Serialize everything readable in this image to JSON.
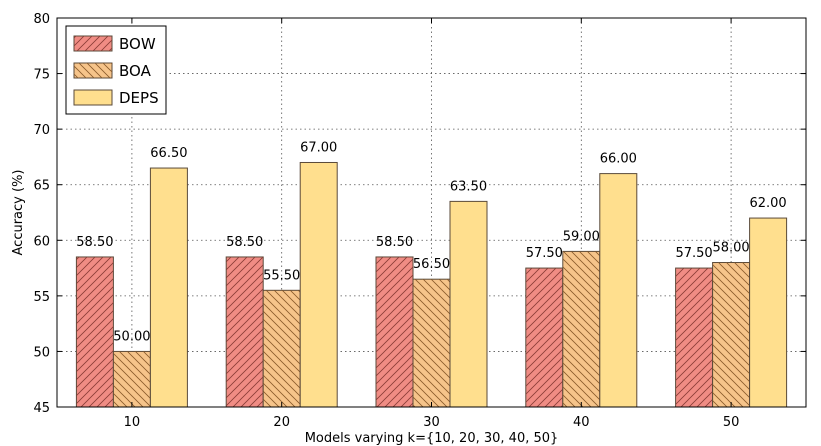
{
  "chart_data": {
    "type": "bar",
    "title": "",
    "xlabel": "Models varying k={10, 20, 30, 40, 50}",
    "ylabel": "Accuracy (%)",
    "categories": [
      "10",
      "20",
      "30",
      "40",
      "50"
    ],
    "ylim": [
      45,
      80
    ],
    "yticks": [
      45,
      50,
      55,
      60,
      65,
      70,
      75,
      80
    ],
    "grid": true,
    "legend_position": "top-left",
    "series": [
      {
        "name": "BOW",
        "values": [
          58.5,
          58.5,
          58.5,
          57.5,
          57.5
        ],
        "labels": [
          "58.50",
          "58.50",
          "58.50",
          "57.50",
          "57.50"
        ],
        "color": "#f08c84",
        "hatch": "forward"
      },
      {
        "name": "BOA",
        "values": [
          50.0,
          55.5,
          56.5,
          59.0,
          58.0
        ],
        "labels": [
          "50.00",
          "55.50",
          "56.50",
          "59.00",
          "58.00"
        ],
        "color": "#f6c48a",
        "hatch": "back"
      },
      {
        "name": "DEPS",
        "values": [
          66.5,
          67.0,
          63.5,
          66.0,
          62.0
        ],
        "labels": [
          "66.50",
          "67.00",
          "63.50",
          "66.00",
          "62.00"
        ],
        "color": "#ffdf8e",
        "hatch": "none"
      }
    ]
  }
}
